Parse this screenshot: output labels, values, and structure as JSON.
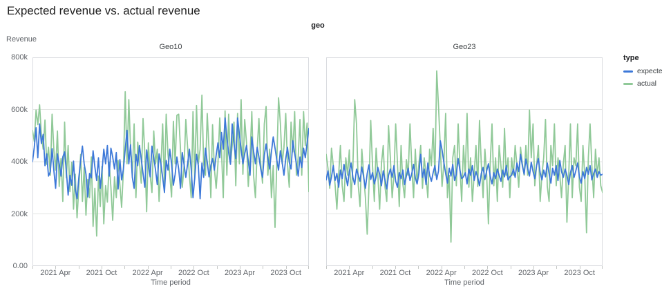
{
  "header": {
    "title": "Expected revenue vs. actual revenue"
  },
  "chart_data": {
    "type": "line",
    "title": "Expected revenue vs. actual revenue",
    "facet_field_label": "geo",
    "xlabel": "Time period",
    "ylabel": "Revenue",
    "ylim": [
      0,
      800000
    ],
    "values_unit": "thousands",
    "frequency": "weekly",
    "x_range": [
      "2021 Jan",
      "2024 Jan"
    ],
    "grid": true,
    "y_ticks": [
      {
        "value": 0,
        "label": "0.00"
      },
      {
        "value": 200,
        "label": "200k"
      },
      {
        "value": 400,
        "label": "400k"
      },
      {
        "value": 600,
        "label": "600k"
      },
      {
        "value": 800,
        "label": "800k"
      }
    ],
    "x_tick_labels": [
      "2021 Apr",
      "2021 Oct",
      "2022 Apr",
      "2022 Oct",
      "2023 Apr",
      "2023 Oct"
    ],
    "x_tick_label_months": [
      3,
      9,
      15,
      21,
      27,
      33
    ],
    "x_minor_tick_every_months": 3,
    "colors": {
      "panel_border": "#dadce0",
      "gridline": "#e3e5e3",
      "tick": "#c4c7c5",
      "axis_text": "#5f6368"
    },
    "legend": {
      "title": "type",
      "position": "right",
      "entries": [
        {
          "label": "expected",
          "color": "#3c78d8"
        },
        {
          "label": "actual",
          "color": "#90c998"
        }
      ]
    },
    "facets": [
      {
        "name": "Geo10",
        "series": [
          {
            "name": "expected",
            "values": [
              400,
              455,
              530,
              415,
              545,
              470,
              505,
              385,
              430,
              345,
              362,
              450,
              365,
              298,
              430,
              392,
              345,
              418,
              438,
              365,
              272,
              348,
              310,
              402,
              296,
              258,
              340,
              405,
              460,
              392,
              352,
              265,
              355,
              338,
              442,
              380,
              328,
              415,
              298,
              362,
              448,
              392,
              462,
              345,
              452,
              418,
              372,
              435,
              295,
              408,
              330,
              372,
              448,
              520,
              392,
              465,
              340,
              298,
              428,
              385,
              462,
              410,
              355,
              302,
              445,
              388,
              342,
              460,
              415,
              368,
              312,
              430,
              392,
              340,
              282,
              405,
              368,
              448,
              392,
              310,
              352,
              418,
              372,
              298,
              435,
              388,
              340,
              392,
              448,
              372,
              262,
              338,
              428,
              385,
              258,
              395,
              340,
              452,
              398,
              342,
              385,
              412,
              368,
              425,
              472,
              415,
              512,
              448,
              568,
              492,
              435,
              390,
              545,
              470,
              412,
              568,
              505,
              448,
              392,
              430,
              462,
              402,
              348,
              495,
              440,
              392,
              455,
              418,
              372,
              340,
              425,
              468,
              415,
              372,
              438,
              495,
              452,
              408,
              368,
              442,
              398,
              348,
              412,
              455,
              398,
              372,
              480,
              432,
              392,
              345,
              418,
              378,
              452,
              415,
              472,
              528
            ]
          },
          {
            "name": "actual",
            "values": [
              520,
              478,
              598,
              542,
              618,
              502,
              448,
              560,
              390,
              455,
              348,
              582,
              442,
              368,
              518,
              305,
              412,
              248,
              552,
              338,
              462,
              285,
              398,
              218,
              352,
              185,
              302,
              428,
              248,
              378,
              195,
              332,
              262,
              418,
              152,
              298,
              115,
              345,
              228,
              382,
              162,
              308,
              245,
              398,
              302,
              175,
              342,
              262,
              405,
              312,
              225,
              368,
              668,
              392,
              638,
              455,
              348,
              545,
              262,
              475,
              398,
              318,
              565,
              432,
              208,
              472,
              348,
              282,
              518,
              392,
              448,
              248,
              375,
              545,
              308,
              582,
              428,
              348,
              265,
              555,
              392,
              578,
              582,
              448,
              302,
              385,
              562,
              455,
              348,
              262,
              592,
              332,
              615,
              392,
              448,
              655,
              392,
              348,
              585,
              445,
              262,
              542,
              375,
              298,
              392,
              568,
              445,
              262,
              595,
              348,
              582,
              392,
              462,
              552,
              308,
              585,
              392,
              638,
              352,
              562,
              475,
              305,
              415,
              592,
              348,
              262,
              448,
              565,
              392,
              318,
              545,
              612,
              348,
              448,
              262,
              385,
              148,
              392,
              645,
              548,
              392,
              455,
              585,
              392,
              302,
              552,
              438,
              592,
              348,
              415,
              562,
              348,
              592,
              462,
              548,
              285
            ]
          }
        ]
      },
      {
        "name": "Geo23",
        "series": [
          {
            "name": "expected",
            "values": [
              330,
              365,
              310,
              342,
              385,
              328,
              355,
              302,
              368,
              335,
              390,
              345,
              308,
              362,
              395,
              340,
              312,
              372,
              348,
              325,
              380,
              342,
              298,
              355,
              388,
              332,
              358,
              315,
              342,
              378,
              352,
              308,
              365,
              330,
              295,
              348,
              372,
              340,
              385,
              325,
              302,
              358,
              335,
              368,
              312,
              345,
              375,
              328,
              355,
              390,
              338,
              315,
              355,
              428,
              340,
              372,
              312,
              395,
              348,
              325,
              358,
              385,
              332,
              365,
              480,
              445,
              398,
              355,
              318,
              375,
              345,
              390,
              328,
              352,
              412,
              368,
              335,
              342,
              358,
              315,
              372,
              348,
              385,
              328,
              362,
              340,
              308,
              355,
              378,
              332,
              365,
              392,
              345,
              315,
              358,
              335,
              372,
              348,
              325,
              368,
              342,
              385,
              330,
              342,
              348,
              372,
              340,
              395,
              362,
              428,
              385,
              352,
              410,
              375,
              345,
              398,
              362,
              335,
              385,
              412,
              358,
              330,
              368,
              342,
              395,
              355,
              318,
              375,
              348,
              385,
              328,
              405,
              362,
              340,
              372,
              348,
              312,
              358,
              385,
              340,
              365,
              395,
              342,
              318,
              362,
              335,
              378,
              352,
              385,
              330,
              355,
              372,
              340,
              362,
              348,
              352
            ]
          },
          {
            "name": "actual",
            "values": [
              428,
              375,
              298,
              452,
              385,
              312,
              218,
              352,
              462,
              308,
              248,
              415,
              348,
              445,
              262,
              385,
              638,
              545,
              308,
              228,
              448,
              352,
              262,
              122,
              305,
              558,
              385,
              248,
              452,
              348,
              218,
              392,
              462,
              302,
              248,
              538,
              415,
              262,
              348,
              545,
              392,
              228,
              462,
              315,
              262,
              408,
              348,
              545,
              385,
              262,
              448,
              315,
              392,
              462,
              298,
              415,
              348,
              262,
              448,
              385,
              528,
              348,
              748,
              612,
              455,
              305,
              392,
              585,
              262,
              348,
              92,
              415,
              462,
              308,
              545,
              385,
              248,
              462,
              348,
              585,
              302,
              415,
              248,
              352,
              462,
              305,
              558,
              392,
              262,
              448,
              348,
              162,
              392,
              545,
              308,
              415,
              248,
              462,
              385,
              302,
              528,
              348,
              415,
              262,
              415,
              348,
              462,
              385,
              302,
              455,
              392,
              348,
              462,
              348,
              598,
              415,
              545,
              308,
              385,
              462,
              248,
              352,
              415,
              562,
              305,
              248,
              462,
              385,
              545,
              308,
              415,
              348,
              262,
              392,
              462,
              168,
              348,
              545,
              262,
              415,
              385,
              545,
              302,
              248,
              462,
              348,
              128,
              415,
              545,
              385,
              262,
              448,
              352,
              415,
              308,
              282
            ]
          }
        ]
      }
    ]
  }
}
